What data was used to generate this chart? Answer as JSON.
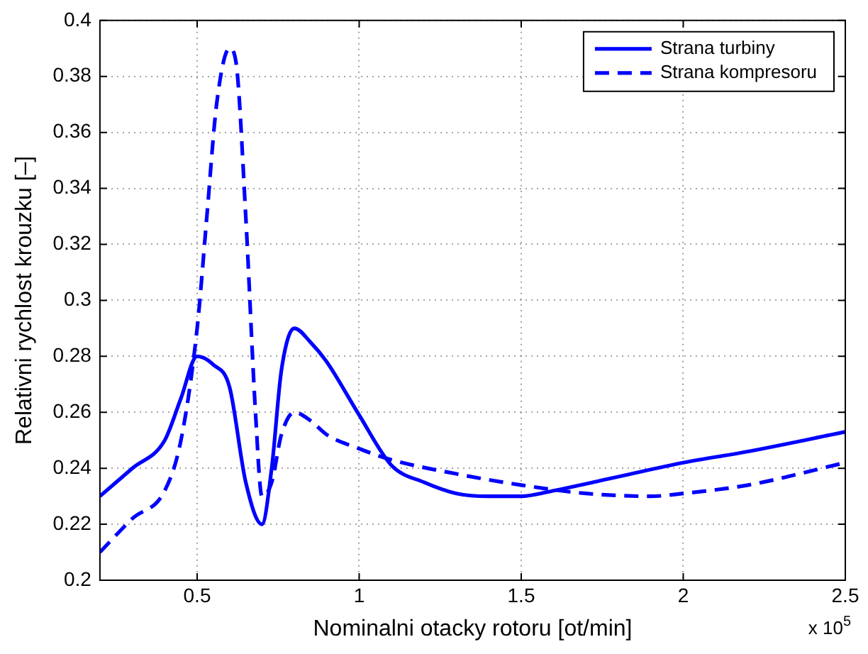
{
  "chart_data": {
    "type": "line",
    "xlabel": "Nominalni otacky rotoru [ot/min]",
    "ylabel": "Relativni rychlost krouzku [–]",
    "annotations": [
      "x 10$^{5}$"
    ],
    "xlim": [
      0.2,
      2.5
    ],
    "xticks": [
      0.5,
      1,
      1.5,
      2,
      2.5
    ],
    "ylim": [
      0.2,
      0.4
    ],
    "yticks": [
      0.2,
      0.22,
      0.24,
      0.26,
      0.28,
      0.3,
      0.32,
      0.34,
      0.36,
      0.38,
      0.4
    ],
    "grid": true,
    "legend": "top right",
    "marker": "none",
    "series": [
      {
        "name": "Strana turbiny",
        "color": "#0000ff",
        "line_style": "solid",
        "x": [
          0.2,
          0.3,
          0.4,
          0.45,
          0.5,
          0.55,
          0.6,
          0.65,
          0.7,
          0.73,
          0.76,
          0.8,
          0.85,
          0.9,
          1.0,
          1.1,
          1.2,
          1.3,
          1.4,
          1.5,
          1.6,
          1.8,
          2.0,
          2.2,
          2.5
        ],
        "values": [
          0.23,
          0.24,
          0.25,
          0.265,
          0.28,
          0.277,
          0.269,
          0.235,
          0.22,
          0.24,
          0.275,
          0.29,
          0.285,
          0.278,
          0.259,
          0.241,
          0.235,
          0.231,
          0.23,
          0.23,
          0.232,
          0.237,
          0.242,
          0.246,
          0.253
        ]
      },
      {
        "name": "Strana kompresoru",
        "color": "#0000ff",
        "line_style": "dashed",
        "x": [
          0.2,
          0.3,
          0.4,
          0.45,
          0.5,
          0.53,
          0.56,
          0.6,
          0.62,
          0.65,
          0.68,
          0.7,
          0.73,
          0.76,
          0.8,
          0.85,
          0.9,
          1.0,
          1.1,
          1.3,
          1.5,
          1.7,
          1.9,
          2.0,
          2.2,
          2.5
        ],
        "values": [
          0.21,
          0.222,
          0.232,
          0.25,
          0.29,
          0.33,
          0.37,
          0.39,
          0.385,
          0.33,
          0.26,
          0.23,
          0.235,
          0.252,
          0.26,
          0.257,
          0.252,
          0.247,
          0.243,
          0.238,
          0.234,
          0.231,
          0.23,
          0.231,
          0.234,
          0.242
        ]
      }
    ]
  }
}
